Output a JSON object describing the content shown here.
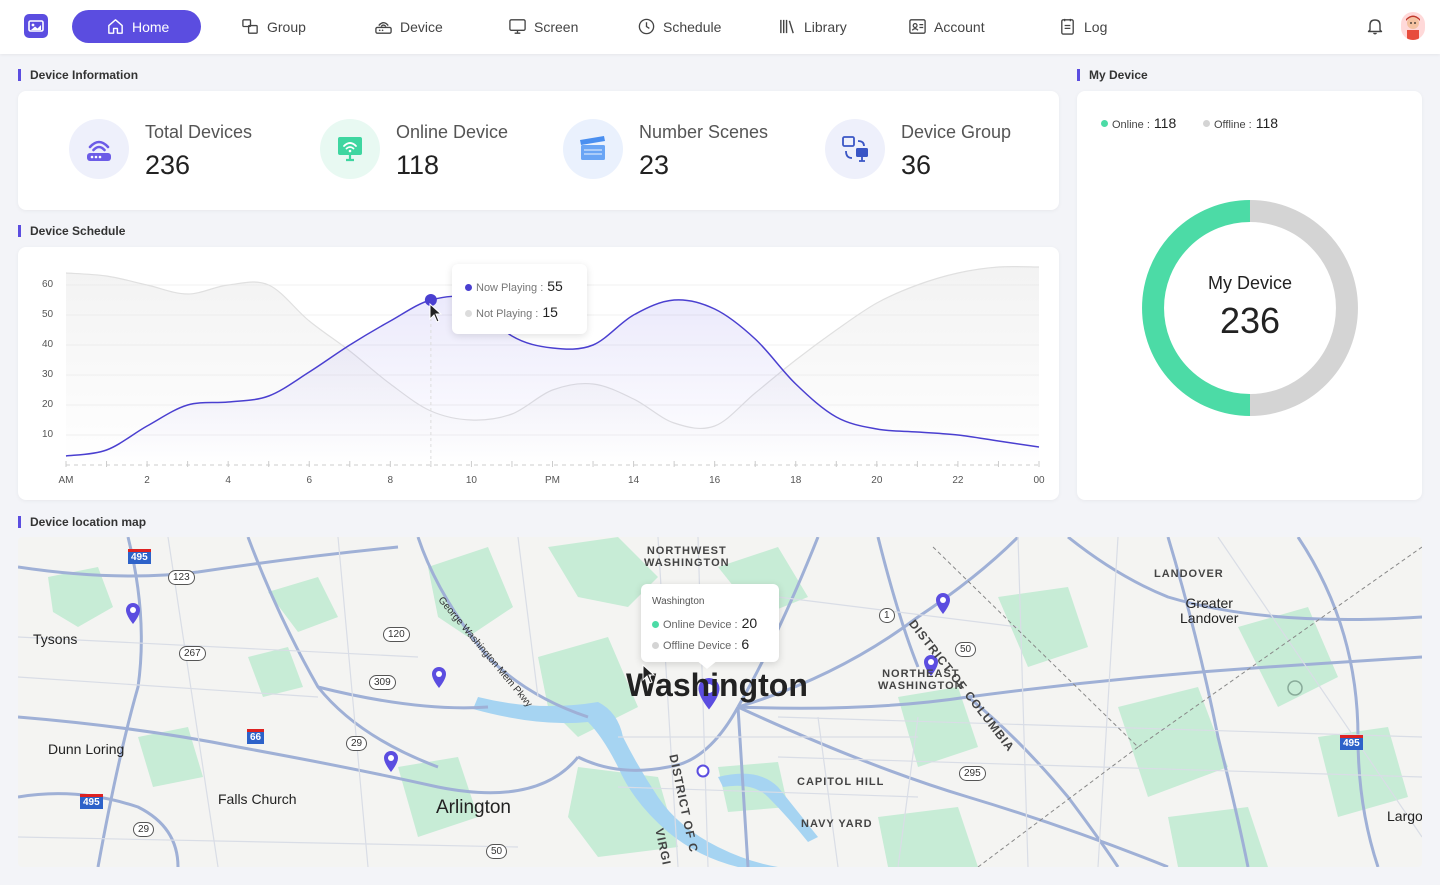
{
  "nav": {
    "items": [
      {
        "label": "Home",
        "icon": "home-icon",
        "active": true
      },
      {
        "label": "Group",
        "icon": "group-icon"
      },
      {
        "label": "Device",
        "icon": "device-icon"
      },
      {
        "label": "Screen",
        "icon": "screen-icon"
      },
      {
        "label": "Schedule",
        "icon": "clock-icon"
      },
      {
        "label": "Library",
        "icon": "library-icon"
      },
      {
        "label": "Account",
        "icon": "account-icon"
      },
      {
        "label": "Log",
        "icon": "log-icon"
      }
    ]
  },
  "device_info": {
    "title": "Device Information",
    "stats": [
      {
        "label": "Total Devices",
        "value": "236",
        "icon": "router-icon"
      },
      {
        "label": "Online Device",
        "value": "118",
        "icon": "monitor-wifi-icon"
      },
      {
        "label": "Number Scenes",
        "value": "23",
        "icon": "clapperboard-icon"
      },
      {
        "label": "Device Group",
        "value": "36",
        "icon": "device-group-icon"
      }
    ]
  },
  "schedule": {
    "title": "Device Schedule",
    "tooltip": {
      "now_label": "Now Playing :",
      "now_value": "55",
      "not_label": "Not Playing :",
      "not_value": "15"
    }
  },
  "chart_data": {
    "type": "area",
    "categories": [
      "AM",
      "2",
      "4",
      "6",
      "8",
      "10",
      "PM",
      "14",
      "16",
      "18",
      "20",
      "22",
      "00"
    ],
    "x": [
      0,
      1,
      2,
      3,
      4,
      5,
      6,
      7,
      8,
      9,
      10,
      11,
      12,
      13,
      14,
      15,
      16,
      17,
      18,
      19,
      20,
      21,
      22,
      23,
      24
    ],
    "series": [
      {
        "name": "Now Playing",
        "values": [
          3,
          5,
          13,
          20,
          21,
          23,
          31,
          40,
          48,
          55,
          55,
          43,
          39,
          40,
          50,
          55,
          52,
          42,
          27,
          16,
          12,
          11,
          10,
          8,
          6
        ],
        "color": "#4a3fd0"
      },
      {
        "name": "Not Playing",
        "values": [
          64,
          63,
          60,
          57,
          60,
          60,
          48,
          38,
          27,
          18,
          15,
          17,
          25,
          27,
          22,
          14,
          13,
          24,
          35,
          45,
          54,
          60,
          64,
          66,
          66
        ],
        "color": "#e0e0e0"
      }
    ],
    "yticks": [
      10,
      20,
      30,
      40,
      50,
      60
    ],
    "ylim": [
      0,
      65
    ],
    "xlim": [
      0,
      24
    ]
  },
  "my_device": {
    "title": "My Device",
    "online_label": "Online :",
    "online_value": "118",
    "offline_label": "Offline :",
    "offline_value": "118",
    "center_label": "My Device",
    "center_value": "236",
    "online_color": "#4cdba6",
    "offline_color": "#d4d4d4"
  },
  "map": {
    "title": "Device location map",
    "labels": {
      "nw": "NORTHWEST\nWASHINGTON",
      "ne": "NORTHEAST\nWASHINGTON",
      "landover": "LANDOVER",
      "greater_landover": "Greater\nLandover",
      "tysons": "Tysons",
      "dunn_loring": "Dunn Loring",
      "falls_church": "Falls Church",
      "arlington": "Arlington",
      "washington": "Washington",
      "capitol_hill": "CAPITOL HILL",
      "navy_yard": "NAVY YARD",
      "largo": "Largo",
      "district1": "DISTRICT OF COLUMBIA",
      "district2": "DISTRICT OF C",
      "virginia": "VIRGI",
      "parkway": "George Washington Mem Pkwy"
    },
    "shields": [
      "123",
      "267",
      "120",
      "309",
      "29",
      "29",
      "1",
      "50",
      "295",
      "50"
    ],
    "interstates": [
      "495",
      "66",
      "495",
      "495"
    ],
    "tooltip": {
      "title": "Washington",
      "online_label": "Online Device :",
      "online_value": "20",
      "offline_label": "Offline Device :",
      "offline_value": "6"
    }
  }
}
